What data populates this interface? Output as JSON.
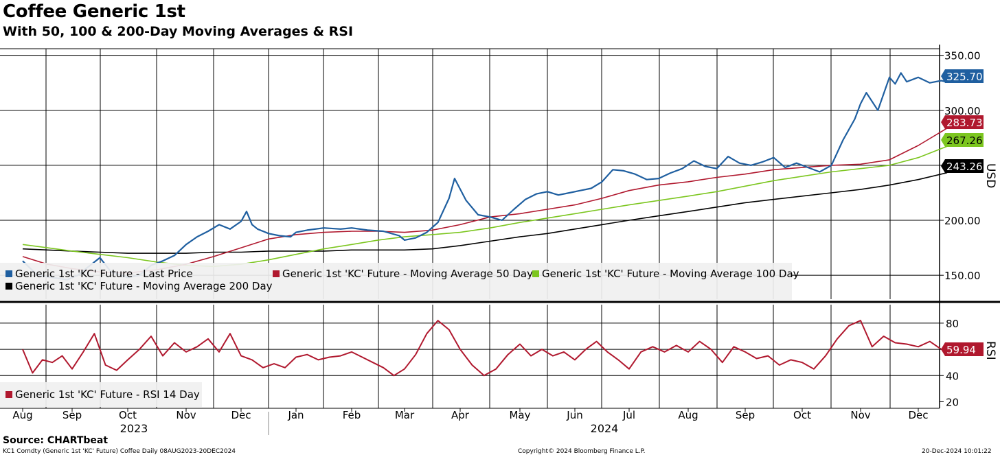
{
  "title": "Coffee Generic 1st",
  "subtitle": "With 50, 100 & 200-Day Moving Averages & RSI",
  "source": "Source: CHARTbeat",
  "footer": {
    "left": "KC1 Comdty (Generic 1st 'KC' Future) Coffee  Daily 08AUG2023-20DEC2024",
    "center": "Copyright© 2024 Bloomberg Finance L.P.",
    "right": "20-Dec-2024 10:01:22"
  },
  "colors": {
    "price": "#1f5fa0",
    "ma50": "#b0182e",
    "ma100": "#7cc61f",
    "ma200": "#000000",
    "rsi": "#b0182e"
  },
  "chart_data": [
    {
      "type": "line",
      "panel": "price",
      "ylabel": "USD",
      "ylim": [
        132,
        356
      ],
      "yticks": [
        150,
        200,
        250,
        300,
        350
      ],
      "ytick_labels": [
        "150.00",
        "200.00",
        "250.00",
        "300.00",
        "350.00"
      ],
      "grid": true,
      "legend_position": "bottom-left",
      "x_months": [
        "Aug",
        "Sep",
        "Oct",
        "Nov",
        "Dec",
        "Jan",
        "Feb",
        "Mar",
        "Apr",
        "May",
        "Jun",
        "Jul",
        "Aug",
        "Sep",
        "Oct",
        "Nov",
        "Dec"
      ],
      "x_years": [
        "2023",
        "2024"
      ],
      "series": [
        {
          "name": "Generic 1st 'KC' Future - Last Price",
          "key": "price",
          "last_label": "325.70",
          "x": [
            0,
            0.3,
            0.6,
            0.9,
            1.1,
            1.3,
            1.5,
            1.7,
            2.0,
            2.2,
            2.4,
            2.6,
            2.8,
            3.0,
            3.2,
            3.4,
            3.6,
            3.8,
            4.0,
            4.1,
            4.2,
            4.3,
            4.5,
            4.7,
            4.9,
            5.0,
            5.2,
            5.5,
            5.8,
            6.0,
            6.3,
            6.6,
            6.9,
            7.0,
            7.2,
            7.4,
            7.6,
            7.8,
            7.9,
            8.1,
            8.3,
            8.5,
            8.7,
            8.9,
            9.1,
            9.3,
            9.5,
            9.7,
            9.9,
            10.1,
            10.3,
            10.5,
            10.7,
            10.9,
            11.1,
            11.3,
            11.5,
            11.7,
            11.9,
            12.1,
            12.3,
            12.5,
            12.7,
            12.9,
            13.1,
            13.3,
            13.5,
            13.7,
            13.9,
            14.1,
            14.3,
            14.5,
            14.7,
            14.9,
            15.0,
            15.1,
            15.3,
            15.5,
            15.6,
            15.7,
            15.8,
            16.0,
            16.2,
            16.4,
            16.5
          ],
          "values": [
            163,
            150,
            148,
            146,
            150,
            158,
            166,
            153,
            148,
            150,
            159,
            163,
            168,
            178,
            185,
            190,
            196,
            192,
            199,
            208,
            196,
            192,
            188,
            186,
            185,
            189,
            191,
            193,
            192,
            193,
            191,
            190,
            186,
            182,
            184,
            189,
            198,
            220,
            238,
            218,
            205,
            203,
            200,
            210,
            219,
            224,
            226,
            223,
            225,
            227,
            229,
            235,
            246,
            245,
            242,
            237,
            238,
            243,
            247,
            254,
            249,
            247,
            258,
            252,
            250,
            253,
            257,
            248,
            252,
            248,
            244,
            250,
            273,
            292,
            306,
            316,
            300,
            330,
            324,
            334,
            326,
            330,
            325,
            327,
            325.7
          ]
        },
        {
          "name": "Generic 1st 'KC' Future - Moving Average 50 Day",
          "key": "ma50",
          "last_label": "283.73",
          "x": [
            0,
            0.5,
            1,
            1.5,
            2,
            2.5,
            3,
            3.5,
            4,
            4.5,
            5,
            5.5,
            6,
            6.5,
            7,
            7.5,
            8,
            8.5,
            9,
            9.5,
            10,
            10.5,
            11,
            11.5,
            12,
            12.5,
            13,
            13.5,
            14,
            14.5,
            15,
            15.5,
            16,
            16.5
          ],
          "values": [
            167,
            160,
            156,
            153,
            152,
            155,
            160,
            167,
            175,
            183,
            187,
            189,
            190,
            190,
            189,
            191,
            196,
            203,
            206,
            210,
            214,
            220,
            227,
            232,
            235,
            239,
            242,
            246,
            248,
            250,
            251,
            255,
            268,
            283.73
          ]
        },
        {
          "name": "Generic 1st 'KC' Future - Moving Average 100 Day",
          "key": "ma100",
          "last_label": "267.26",
          "x": [
            0,
            0.5,
            1,
            1.5,
            2,
            2.5,
            3,
            3.5,
            4,
            4.5,
            5,
            5.5,
            6,
            6.5,
            7,
            7.5,
            8,
            8.5,
            9,
            9.5,
            10,
            10.5,
            11,
            11.5,
            12,
            12.5,
            13,
            13.5,
            14,
            14.5,
            15,
            15.5,
            16,
            16.5
          ],
          "values": [
            178,
            175,
            172,
            169,
            166,
            162,
            159,
            158,
            160,
            164,
            169,
            174,
            178,
            182,
            185,
            187,
            189,
            193,
            198,
            202,
            206,
            210,
            214,
            218,
            222,
            226,
            231,
            236,
            240,
            244,
            247,
            250,
            257,
            267.26
          ]
        },
        {
          "name": "Generic 1st 'KC' Future - Moving Average 200 Day",
          "key": "ma200",
          "last_label": "243.26",
          "x": [
            0,
            0.5,
            1,
            1.5,
            2,
            2.5,
            3,
            3.5,
            4,
            4.5,
            5,
            5.5,
            6,
            6.5,
            7,
            7.5,
            8,
            8.5,
            9,
            9.5,
            10,
            10.5,
            11,
            11.5,
            12,
            12.5,
            13,
            13.5,
            14,
            14.5,
            15,
            15.5,
            16,
            16.5
          ],
          "values": [
            174,
            173,
            172,
            171,
            170,
            170,
            170,
            171,
            171,
            172,
            172,
            172,
            173,
            173,
            173,
            174,
            177,
            181,
            185,
            188,
            192,
            196,
            200,
            204,
            208,
            212,
            216,
            219,
            222,
            225,
            228,
            232,
            237,
            243.26
          ]
        }
      ]
    },
    {
      "type": "line",
      "panel": "rsi",
      "ylabel": "RSI",
      "ylim": [
        15,
        92
      ],
      "yticks": [
        20,
        40,
        60,
        80
      ],
      "ytick_labels": [
        "20",
        "40",
        "60",
        "80"
      ],
      "grid": true,
      "legend_position": "bottom-left",
      "series": [
        {
          "name": "Generic 1st 'KC' Future - RSI 14 Day",
          "key": "rsi",
          "last_label": "59.94",
          "x": [
            0,
            0.2,
            0.4,
            0.6,
            0.8,
            1.0,
            1.2,
            1.4,
            1.6,
            1.8,
            2.0,
            2.2,
            2.4,
            2.6,
            2.8,
            3.0,
            3.2,
            3.4,
            3.6,
            3.8,
            4.0,
            4.2,
            4.4,
            4.6,
            4.8,
            5.0,
            5.2,
            5.4,
            5.6,
            5.8,
            6.0,
            6.2,
            6.4,
            6.6,
            6.8,
            7.0,
            7.2,
            7.4,
            7.6,
            7.8,
            8.0,
            8.2,
            8.4,
            8.6,
            8.8,
            9.0,
            9.2,
            9.4,
            9.6,
            9.8,
            10.0,
            10.2,
            10.4,
            10.6,
            10.8,
            11.0,
            11.2,
            11.4,
            11.6,
            11.8,
            12.0,
            12.2,
            12.4,
            12.6,
            12.8,
            13.0,
            13.2,
            13.4,
            13.6,
            13.8,
            14.0,
            14.2,
            14.4,
            14.6,
            14.8,
            15.0,
            15.2,
            15.4,
            15.6,
            15.8,
            16.0,
            16.2,
            16.4,
            16.5
          ],
          "values": [
            60,
            42,
            52,
            50,
            55,
            45,
            58,
            72,
            48,
            44,
            52,
            60,
            70,
            55,
            65,
            58,
            62,
            68,
            58,
            72,
            55,
            52,
            46,
            49,
            46,
            54,
            56,
            52,
            54,
            55,
            58,
            54,
            50,
            46,
            40,
            45,
            56,
            72,
            82,
            75,
            60,
            48,
            40,
            45,
            56,
            64,
            55,
            60,
            55,
            58,
            52,
            60,
            66,
            58,
            52,
            45,
            58,
            62,
            58,
            63,
            58,
            66,
            60,
            50,
            62,
            58,
            53,
            55,
            48,
            52,
            50,
            45,
            55,
            68,
            78,
            82,
            62,
            70,
            65,
            64,
            62,
            66,
            60,
            59.94
          ]
        }
      ]
    }
  ]
}
